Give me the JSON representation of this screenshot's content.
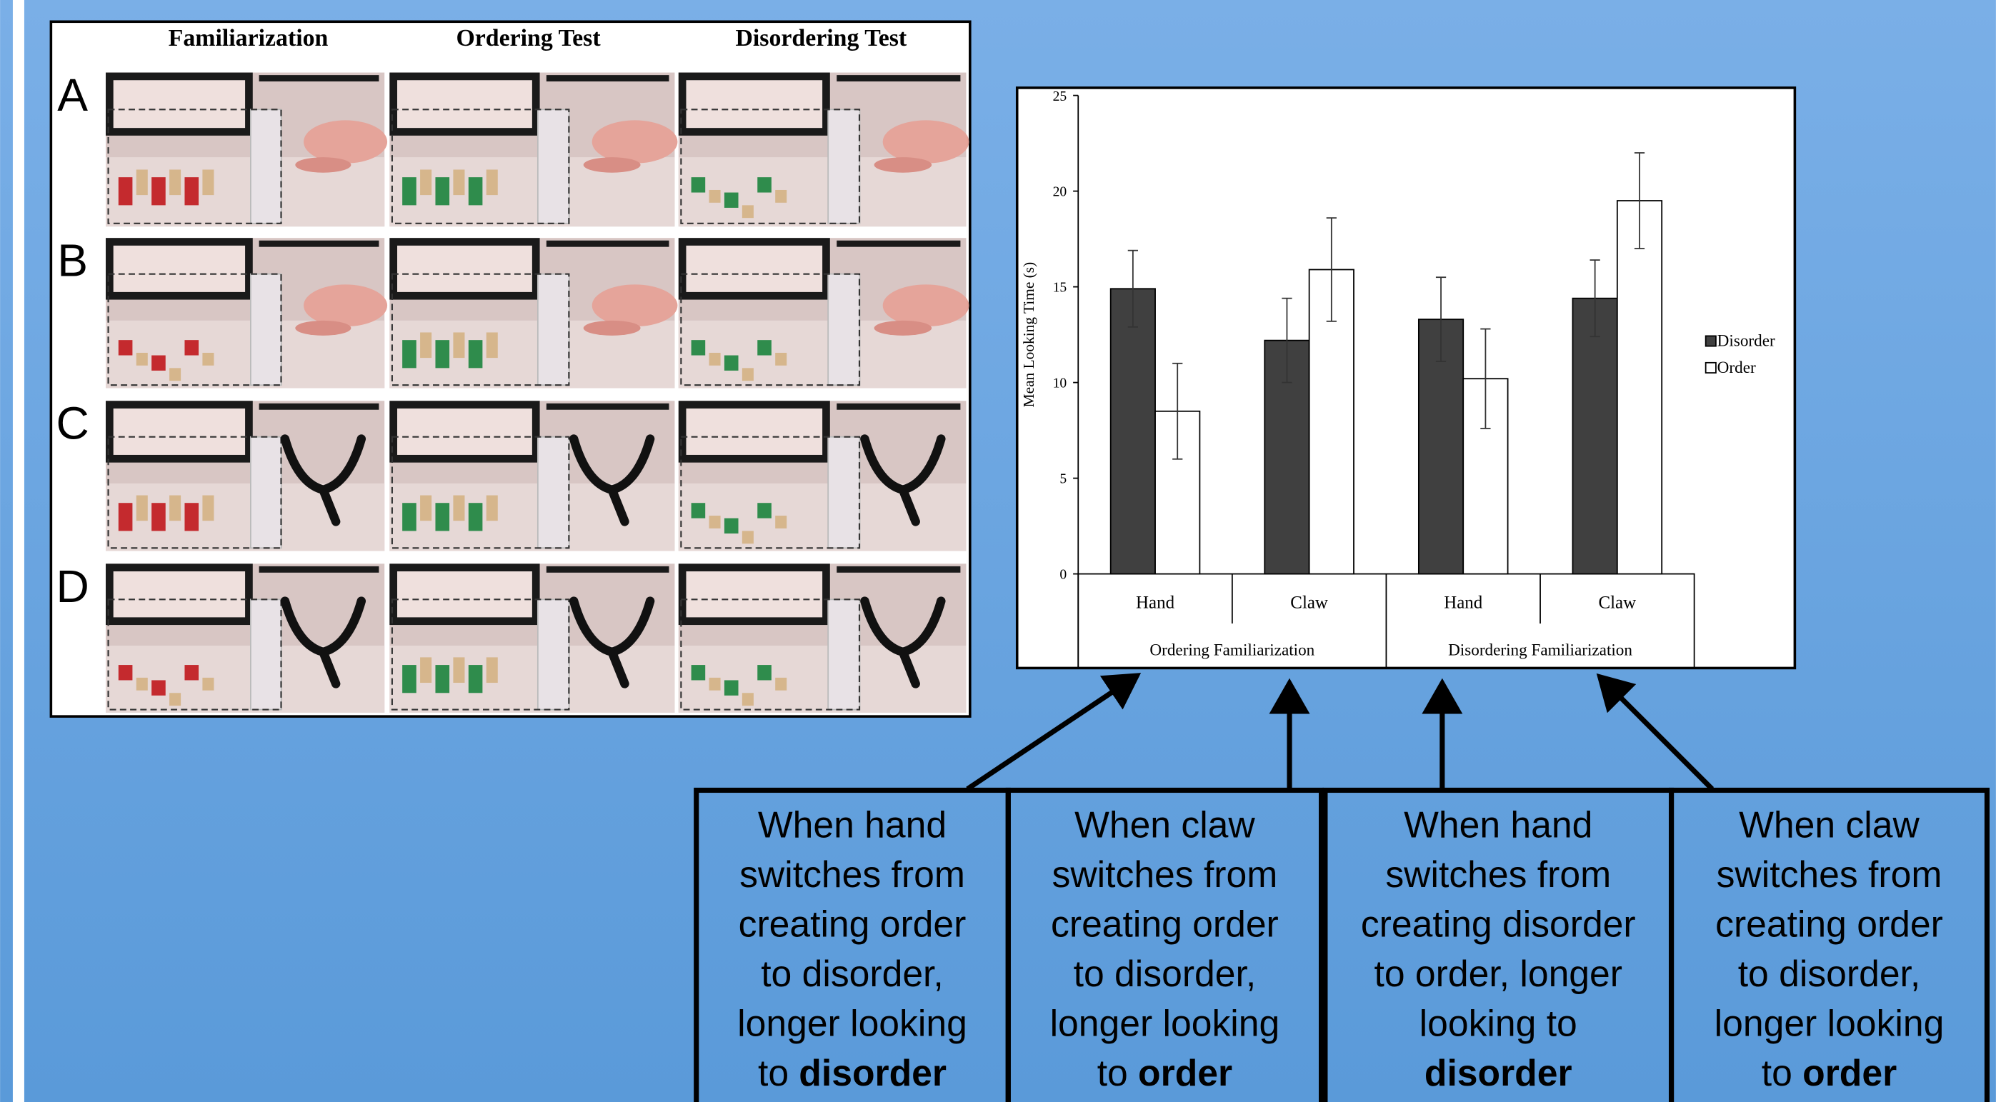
{
  "slide": {
    "figure": {
      "columns": [
        "Familiarization",
        "Ordering Test",
        "Disordering Test"
      ],
      "rows": [
        "A",
        "B",
        "C",
        "D"
      ]
    },
    "callouts": [
      {
        "lines": [
          {
            "text": "When hand"
          },
          {
            "text": "switches from"
          },
          {
            "text": "creating order"
          },
          {
            "text": "to disorder,"
          },
          {
            "text": "longer looking"
          },
          {
            "text": "to",
            "bold": "disorder"
          }
        ]
      },
      {
        "lines": [
          {
            "text": "When claw"
          },
          {
            "text": "switches from"
          },
          {
            "text": "creating order"
          },
          {
            "text": "to disorder,"
          },
          {
            "text": "longer looking"
          },
          {
            "text": "to",
            "bold": "order"
          }
        ]
      },
      {
        "lines": [
          {
            "text": "When hand"
          },
          {
            "text": "switches from"
          },
          {
            "text": "creating disorder"
          },
          {
            "text": "to order, longer"
          },
          {
            "text": "looking to"
          },
          {
            "bold": "disorder"
          }
        ]
      },
      {
        "lines": [
          {
            "text": "When claw"
          },
          {
            "text": "switches from"
          },
          {
            "text": "creating order"
          },
          {
            "text": "to disorder,"
          },
          {
            "text": "longer looking"
          },
          {
            "text": "to",
            "bold": "order"
          }
        ]
      }
    ]
  },
  "chart_data": {
    "type": "bar",
    "y_label": "Mean Looking Time (s)",
    "categories": [
      "Hand",
      "Claw",
      "Hand",
      "Claw"
    ],
    "groups": [
      "Ordering Familiarization",
      "Disordering Familiarization"
    ],
    "series": [
      {
        "name": "Disorder",
        "color": "#404040",
        "values": [
          14.9,
          12.2,
          13.3,
          14.4
        ],
        "errors": [
          2.0,
          2.2,
          2.2,
          2.0
        ]
      },
      {
        "name": "Order",
        "color": "#ffffff",
        "values": [
          8.5,
          15.9,
          10.2,
          19.5
        ],
        "errors": [
          2.5,
          2.7,
          2.6,
          2.5
        ]
      }
    ],
    "ylim": [
      0,
      25
    ],
    "yticks": [
      0,
      5,
      10,
      15,
      20,
      25
    ],
    "legend": "right"
  }
}
